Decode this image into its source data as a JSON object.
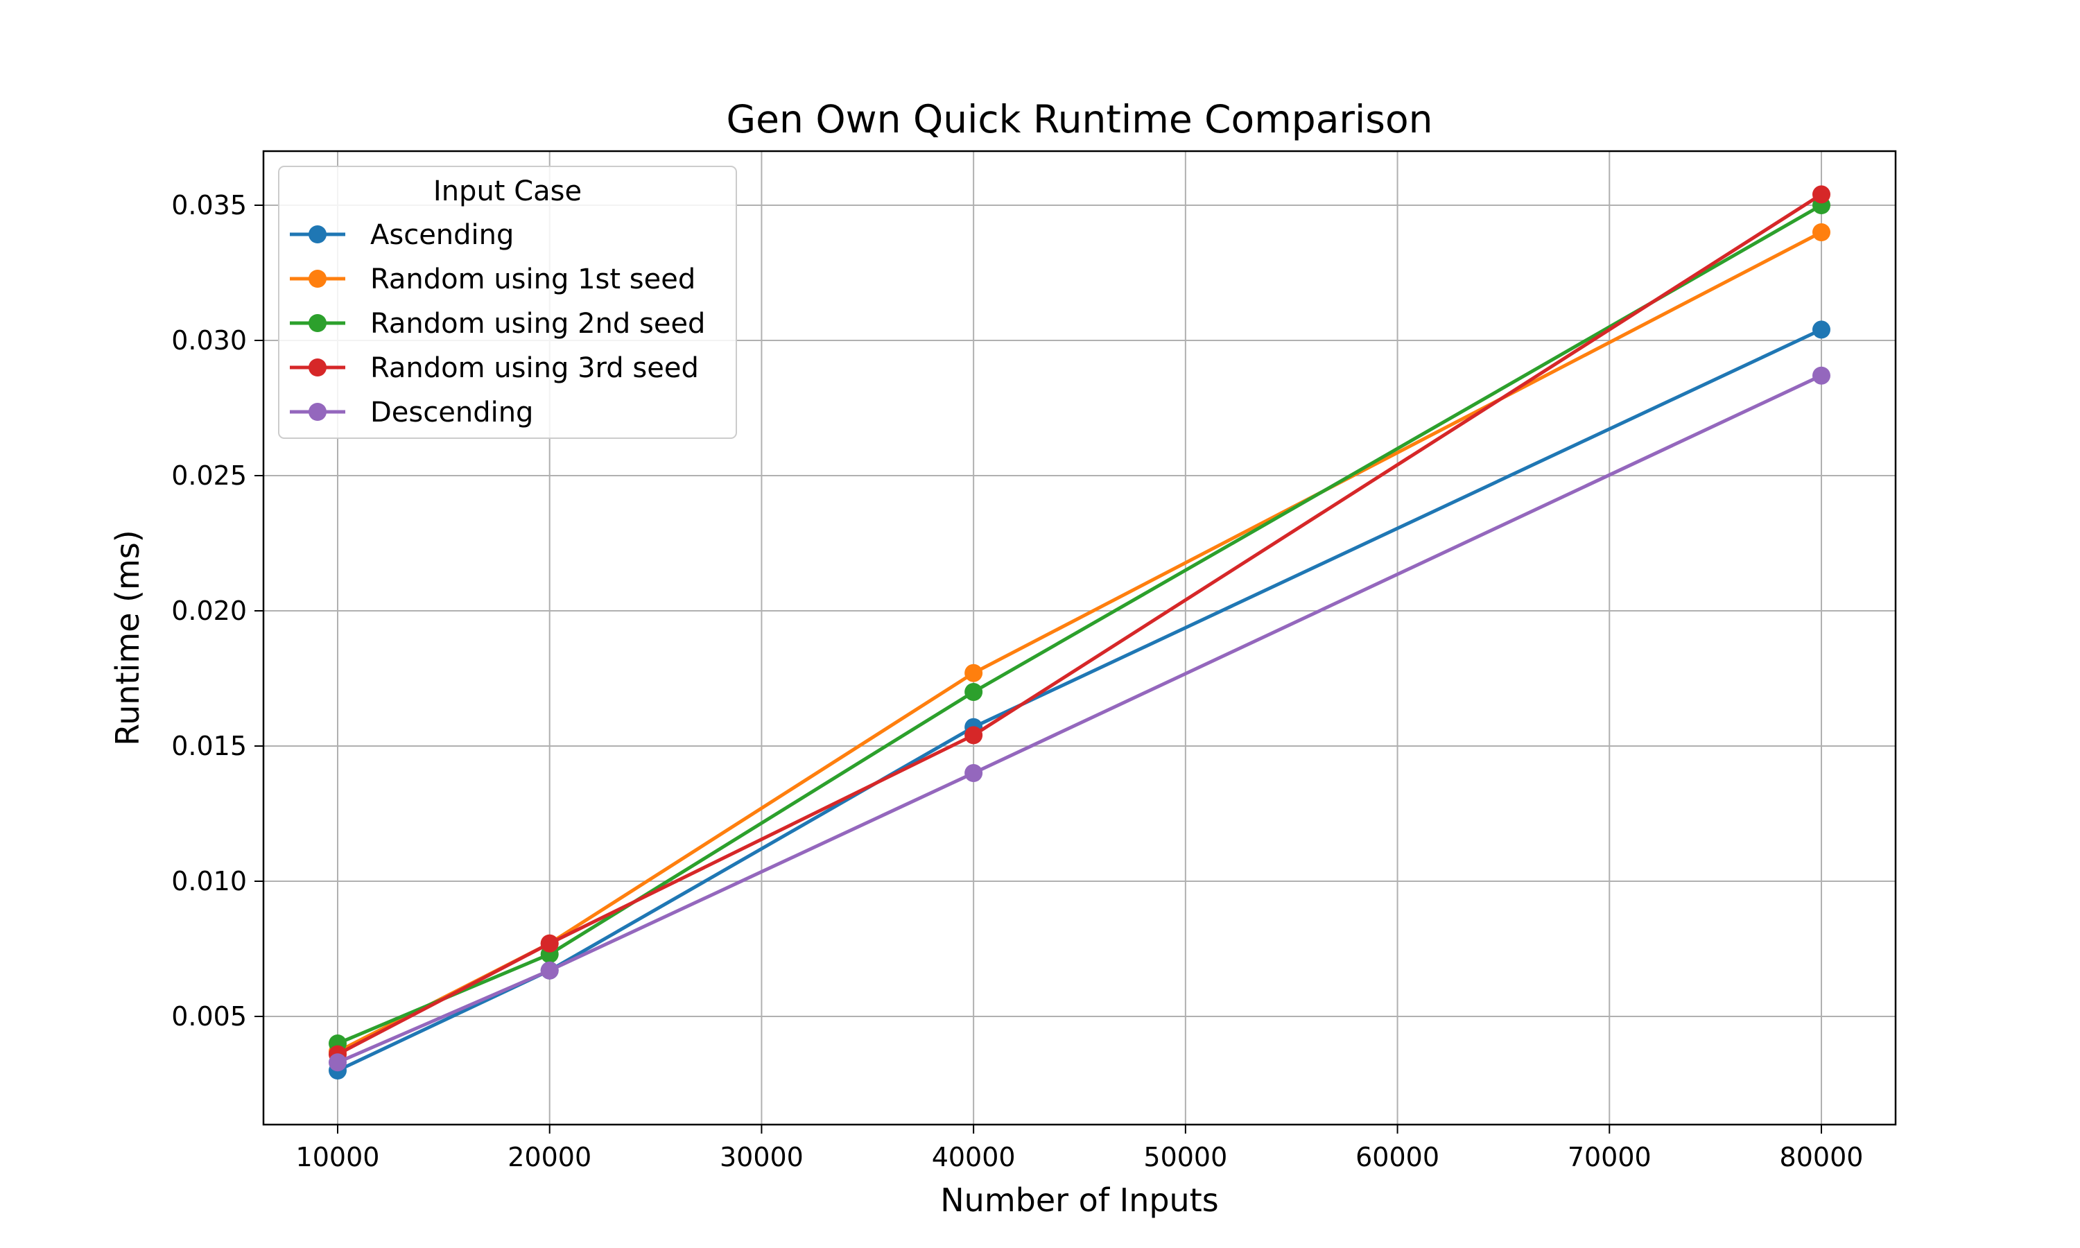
{
  "chart_data": {
    "type": "line",
    "title": "Gen Own Quick Runtime Comparison",
    "xlabel": "Number of Inputs",
    "ylabel": "Runtime (ms)",
    "xlim": [
      6500,
      83500
    ],
    "ylim": [
      0.001,
      0.037
    ],
    "xticks": [
      10000,
      20000,
      30000,
      40000,
      50000,
      60000,
      70000,
      80000
    ],
    "xtick_labels": [
      "10000",
      "20000",
      "30000",
      "40000",
      "50000",
      "60000",
      "70000",
      "80000"
    ],
    "yticks": [
      0.005,
      0.01,
      0.015,
      0.02,
      0.025,
      0.03,
      0.035
    ],
    "ytick_labels": [
      "0.005",
      "0.010",
      "0.015",
      "0.020",
      "0.025",
      "0.030",
      "0.035"
    ],
    "grid": true,
    "legend_title": "Input Case",
    "legend_position": "top-left",
    "x": [
      10000,
      20000,
      40000,
      80000
    ],
    "series": [
      {
        "name": "Ascending",
        "color": "#1f77b4",
        "values": [
          0.003,
          0.0067,
          0.0157,
          0.0304
        ]
      },
      {
        "name": "Random using 1st seed",
        "color": "#ff7f0e",
        "values": [
          0.0037,
          0.0077,
          0.0177,
          0.034
        ]
      },
      {
        "name": "Random using 2nd seed",
        "color": "#2ca02c",
        "values": [
          0.004,
          0.0073,
          0.017,
          0.035
        ]
      },
      {
        "name": "Random using 3rd seed",
        "color": "#d62728",
        "values": [
          0.0036,
          0.0077,
          0.0154,
          0.0354
        ]
      },
      {
        "name": "Descending",
        "color": "#9467bd",
        "values": [
          0.0033,
          0.0067,
          0.014,
          0.0287
        ]
      }
    ]
  }
}
